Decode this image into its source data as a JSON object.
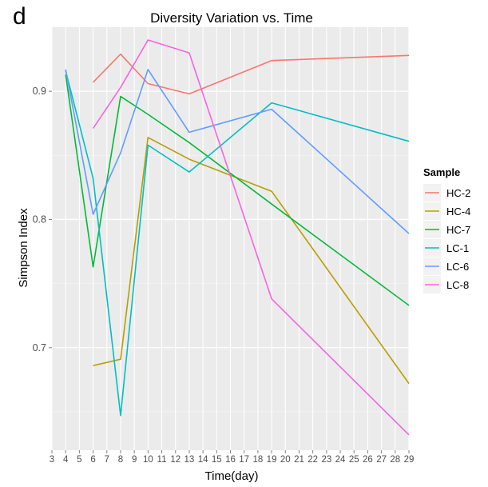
{
  "panel_label": "d",
  "chart_data": {
    "type": "line",
    "title": "Diversity Variation vs. Time",
    "xlabel": "Time(day)",
    "ylabel": "Simpson Index",
    "xlim": [
      3,
      29
    ],
    "ylim": [
      0.62,
      0.95
    ],
    "x_ticks": [
      3,
      4,
      5,
      6,
      7,
      8,
      9,
      10,
      11,
      12,
      13,
      14,
      15,
      16,
      17,
      18,
      19,
      20,
      21,
      22,
      23,
      24,
      25,
      26,
      27,
      28,
      29
    ],
    "y_ticks": [
      0.7,
      0.8,
      0.9
    ],
    "y_tick_labels": [
      "0.7",
      "0.8",
      "0.9"
    ],
    "grid": true,
    "legend_title": "Sample",
    "legend_position": "right",
    "series": [
      {
        "name": "HC-2",
        "color": "#F8766D",
        "x": [
          6,
          8,
          10,
          13,
          19,
          29
        ],
        "y": [
          0.907,
          0.929,
          0.906,
          0.898,
          0.924,
          0.928
        ]
      },
      {
        "name": "HC-4",
        "color": "#B79F00",
        "x": [
          6,
          8,
          10,
          13,
          19,
          29
        ],
        "y": [
          0.686,
          0.691,
          0.864,
          0.847,
          0.822,
          0.672
        ]
      },
      {
        "name": "HC-7",
        "color": "#00BA38",
        "x": [
          4,
          6,
          8,
          10,
          13,
          19,
          29
        ],
        "y": [
          0.913,
          0.763,
          0.896,
          0.882,
          0.86,
          0.812,
          0.733
        ]
      },
      {
        "name": "LC-1",
        "color": "#00BFC4",
        "x": [
          4,
          6,
          8,
          10,
          13,
          19,
          29
        ],
        "y": [
          0.916,
          0.832,
          0.647,
          0.858,
          0.837,
          0.891,
          0.861
        ]
      },
      {
        "name": "LC-6",
        "color": "#619CFF",
        "x": [
          4,
          6,
          8,
          10,
          13,
          19,
          29
        ],
        "y": [
          0.917,
          0.804,
          0.852,
          0.917,
          0.868,
          0.886,
          0.789
        ]
      },
      {
        "name": "LC-8",
        "color": "#F564E3",
        "x": [
          6,
          8,
          10,
          13,
          19,
          29
        ],
        "y": [
          0.871,
          0.903,
          0.94,
          0.93,
          0.738,
          0.632
        ]
      }
    ]
  }
}
